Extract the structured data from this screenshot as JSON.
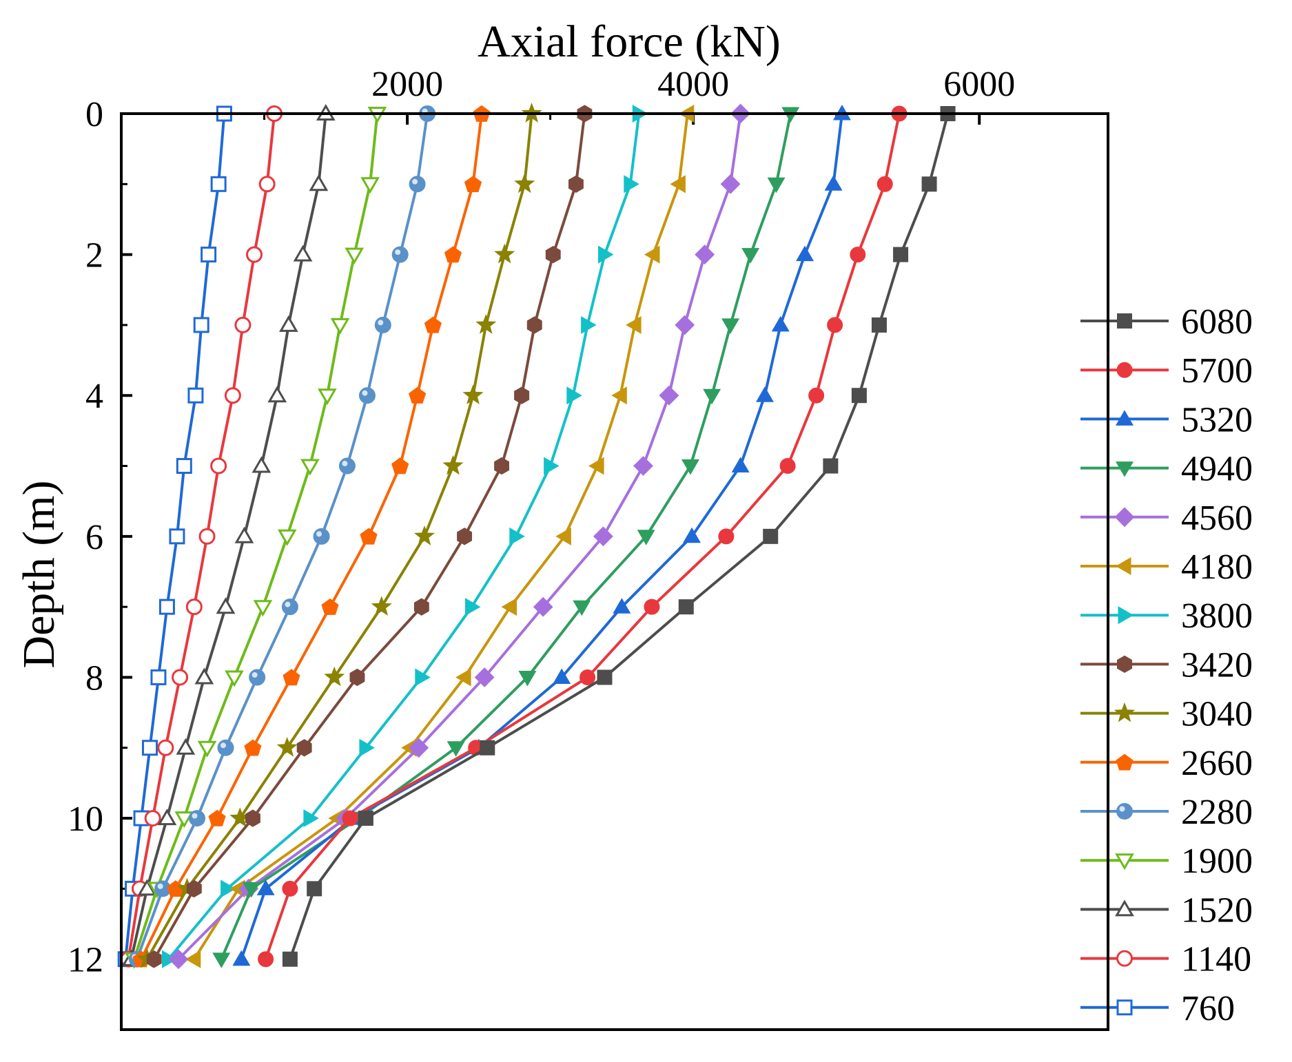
{
  "chart_data": {
    "type": "line",
    "title": "",
    "xlabel": "Axial force (kN)",
    "ylabel": "Depth (m)",
    "xlim": [
      0,
      6900
    ],
    "ylim": [
      0,
      13
    ],
    "x_axis_position": "top",
    "y_inverted": true,
    "grid": false,
    "legend_placement": "right",
    "x_ticks": [
      {
        "value": 2000,
        "label": "2000"
      },
      {
        "value": 4000,
        "label": "4000"
      },
      {
        "value": 6000,
        "label": "6000"
      }
    ],
    "y_ticks": [
      {
        "value": 0,
        "label": "0"
      },
      {
        "value": 2,
        "label": "2"
      },
      {
        "value": 4,
        "label": "4"
      },
      {
        "value": 6,
        "label": "6"
      },
      {
        "value": 8,
        "label": "8"
      },
      {
        "value": 10,
        "label": "10"
      },
      {
        "value": 12,
        "label": "12"
      }
    ],
    "depth": [
      0,
      1,
      2,
      3,
      4,
      5,
      6,
      7,
      8,
      9,
      10,
      11,
      12
    ],
    "series": [
      {
        "name": "6080",
        "color": "#4d4d4d",
        "marker": "square",
        "filled": true,
        "values": [
          5780,
          5650,
          5450,
          5300,
          5160,
          4960,
          4540,
          3950,
          3380,
          2560,
          1710,
          1350,
          1180
        ]
      },
      {
        "name": "5700",
        "color": "#e8383d",
        "marker": "circle",
        "filled": true,
        "values": [
          5440,
          5340,
          5150,
          4990,
          4860,
          4660,
          4230,
          3710,
          3260,
          2480,
          1600,
          1180,
          1010
        ]
      },
      {
        "name": "5320",
        "color": "#1f69d6",
        "marker": "triangle-up",
        "filled": true,
        "values": [
          5040,
          4980,
          4780,
          4610,
          4500,
          4330,
          3990,
          3500,
          3080,
          2500,
          1620,
          1010,
          840
        ]
      },
      {
        "name": "4940",
        "color": "#2e9e5f",
        "marker": "triangle-down",
        "filled": true,
        "values": [
          4680,
          4580,
          4400,
          4260,
          4130,
          3980,
          3670,
          3220,
          2840,
          2340,
          1660,
          910,
          700
        ]
      },
      {
        "name": "4560",
        "color": "#a66fde",
        "marker": "diamond",
        "filled": true,
        "values": [
          4330,
          4260,
          4080,
          3940,
          3830,
          3650,
          3370,
          2950,
          2540,
          2080,
          1570,
          890,
          400
        ]
      },
      {
        "name": "4180",
        "color": "#c8960c",
        "marker": "triangle-left",
        "filled": true,
        "values": [
          3960,
          3900,
          3720,
          3590,
          3490,
          3330,
          3100,
          2720,
          2400,
          2020,
          1510,
          820,
          510
        ]
      },
      {
        "name": "3800",
        "color": "#14c0c8",
        "marker": "triangle-right",
        "filled": true,
        "values": [
          3620,
          3560,
          3380,
          3260,
          3160,
          3000,
          2760,
          2450,
          2100,
          1710,
          1320,
          740,
          330
        ]
      },
      {
        "name": "3420",
        "color": "#7b4a3c",
        "marker": "hexagon",
        "filled": true,
        "values": [
          3240,
          3180,
          3020,
          2890,
          2800,
          2660,
          2400,
          2100,
          1650,
          1280,
          920,
          510,
          230
        ]
      },
      {
        "name": "3040",
        "color": "#8a8200",
        "marker": "star",
        "filled": true,
        "values": [
          2870,
          2820,
          2680,
          2550,
          2460,
          2320,
          2120,
          1820,
          1490,
          1160,
          830,
          460,
          180
        ]
      },
      {
        "name": "2660",
        "color": "#fa6400",
        "marker": "pentagon",
        "filled": true,
        "values": [
          2520,
          2460,
          2320,
          2180,
          2070,
          1950,
          1730,
          1460,
          1190,
          920,
          670,
          380,
          140
        ]
      },
      {
        "name": "2280",
        "color": "#5a91c8",
        "marker": "sphere",
        "filled": true,
        "values": [
          2140,
          2070,
          1950,
          1830,
          1720,
          1580,
          1400,
          1180,
          950,
          730,
          530,
          290,
          110
        ]
      },
      {
        "name": "1900",
        "color": "#6dbb1a",
        "marker": "triangle-down",
        "filled": false,
        "values": [
          1790,
          1740,
          1630,
          1530,
          1440,
          1320,
          1160,
          990,
          790,
          600,
          440,
          250,
          90
        ]
      },
      {
        "name": "1520",
        "color": "#4d4d4d",
        "marker": "triangle-up",
        "filled": false,
        "values": [
          1430,
          1380,
          1270,
          1170,
          1090,
          980,
          860,
          730,
          580,
          450,
          320,
          180,
          70
        ]
      },
      {
        "name": "1140",
        "color": "#e8383d",
        "marker": "circle",
        "filled": false,
        "values": [
          1070,
          1020,
          930,
          850,
          780,
          680,
          600,
          510,
          410,
          310,
          220,
          130,
          50
        ]
      },
      {
        "name": "760",
        "color": "#1f69d6",
        "marker": "square",
        "filled": false,
        "values": [
          720,
          680,
          610,
          560,
          520,
          440,
          390,
          320,
          260,
          200,
          140,
          80,
          30
        ]
      }
    ]
  }
}
